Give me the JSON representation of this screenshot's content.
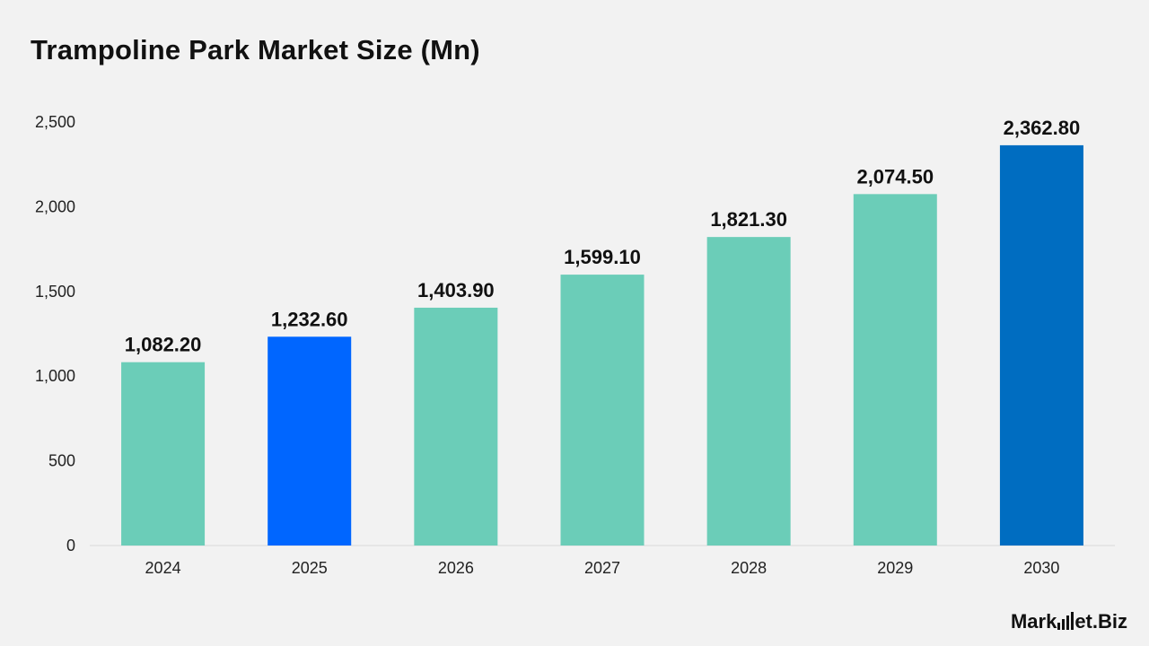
{
  "title": "Trampoline Park Market Size (Mn)",
  "chart_data": {
    "type": "bar",
    "title": "Trampoline Park Market Size (Mn)",
    "xlabel": "",
    "ylabel": "",
    "categories": [
      "2024",
      "2025",
      "2026",
      "2027",
      "2028",
      "2029",
      "2030"
    ],
    "values": [
      1082.2,
      1232.6,
      1403.9,
      1599.1,
      1821.3,
      2074.5,
      2362.8
    ],
    "value_labels": [
      "1,082.20",
      "1,232.60",
      "1,403.90",
      "1,599.10",
      "1,821.30",
      "2,074.50",
      "2,362.80"
    ],
    "bar_colors": [
      "#6bcdb8",
      "#0066ff",
      "#6bcdb8",
      "#6bcdb8",
      "#6bcdb8",
      "#6bcdb8",
      "#006dc1"
    ],
    "ylim": [
      0,
      2500
    ],
    "yticks": [
      0,
      500,
      1000,
      1500,
      2000,
      2500
    ],
    "ytick_labels": [
      "0",
      "500",
      "1,000",
      "1,500",
      "2,000",
      "2,500"
    ],
    "grid": false,
    "legend": "none"
  },
  "logo": {
    "text_left": "Mark",
    "text_mid": "et",
    "text_right": ".Biz"
  }
}
